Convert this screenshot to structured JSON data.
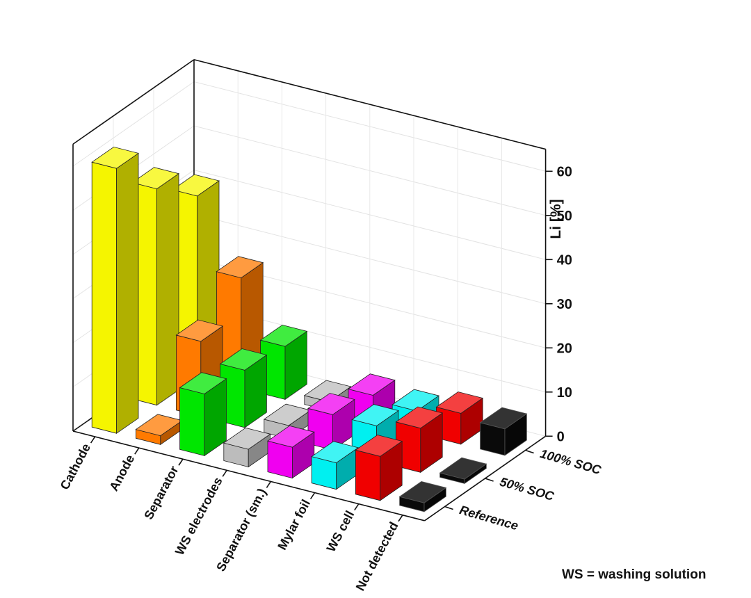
{
  "chart_data": {
    "type": "bar",
    "subtype": "3d-bar",
    "categories": [
      "Cathode",
      "Anode",
      "Separator",
      "WS electrodes",
      "Separator (sm.)",
      "Mylar foil",
      "WS cell",
      "Not detected"
    ],
    "series": [
      {
        "name": "Reference",
        "values": [
          60,
          2,
          14,
          4,
          7,
          6,
          10,
          2
        ]
      },
      {
        "name": "50% SOC",
        "values": [
          49,
          17,
          13,
          3,
          8,
          8,
          10,
          1
        ]
      },
      {
        "name": "100% SOC",
        "values": [
          41,
          25,
          12,
          2,
          6,
          5,
          7,
          6
        ]
      }
    ],
    "colors": [
      "#f5f500",
      "#ff7a00",
      "#00e600",
      "#bcbcbc",
      "#f000f0",
      "#00f0f0",
      "#f00000",
      "#0a0a0a"
    ],
    "ylabel": "Li [%]",
    "ylim": [
      0,
      65
    ],
    "yticks": [
      0,
      10,
      20,
      30,
      40,
      50,
      60
    ],
    "grid": true
  },
  "footnote": "WS = washing solution"
}
